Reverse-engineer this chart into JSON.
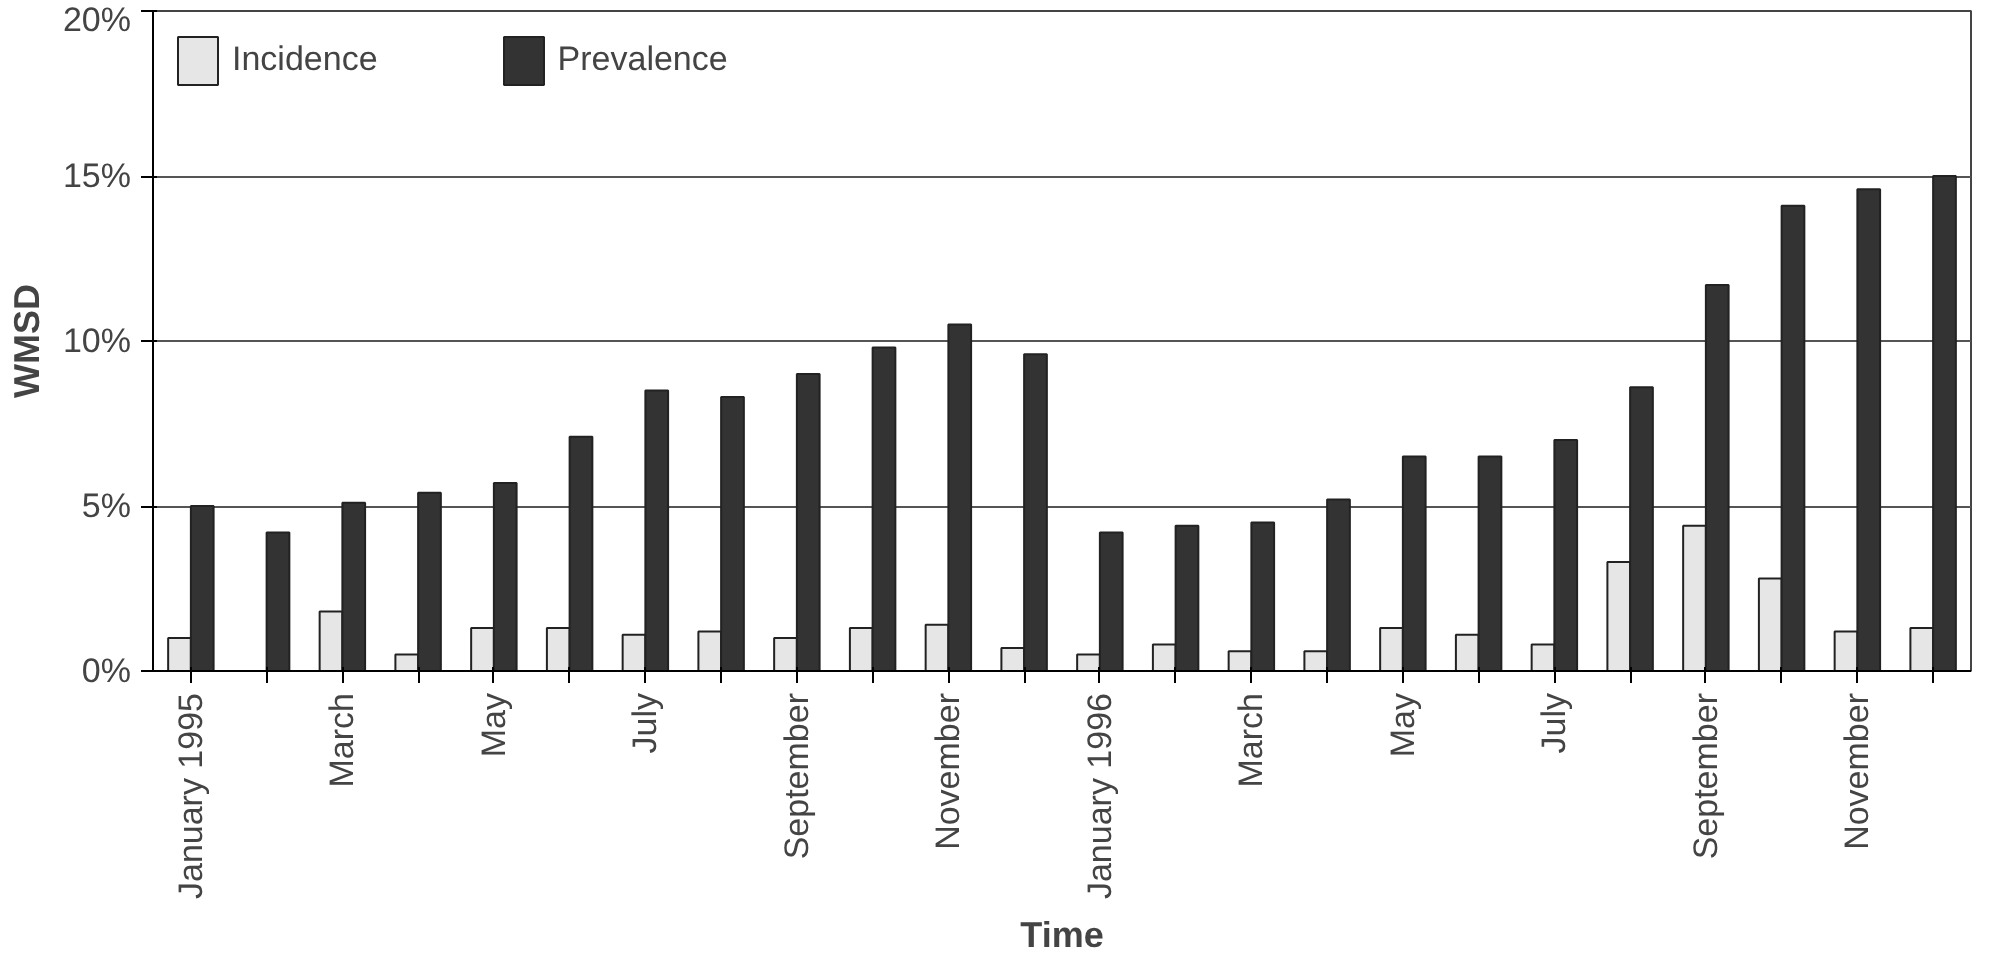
{
  "chart_data": {
    "type": "bar",
    "xlabel": "Time",
    "ylabel": "WMSD",
    "categories": [
      "January 1995",
      null,
      "March",
      null,
      "May",
      null,
      "July",
      null,
      "September",
      null,
      "November",
      null,
      "January 1996",
      null,
      "March",
      null,
      "May",
      null,
      "July",
      null,
      "September",
      null,
      "November",
      null
    ],
    "series": [
      {
        "name": "Incidence",
        "color": "#e6e6e6",
        "values": [
          1.0,
          null,
          1.8,
          0.5,
          1.3,
          1.3,
          1.1,
          1.2,
          1.0,
          1.3,
          1.4,
          0.7,
          0.5,
          0.8,
          0.6,
          0.6,
          1.3,
          1.1,
          0.8,
          3.3,
          4.4,
          2.8,
          1.2,
          1.3
        ]
      },
      {
        "name": "Prevalence",
        "color": "#333333",
        "values": [
          5.0,
          4.2,
          5.1,
          5.4,
          5.7,
          7.1,
          8.5,
          8.3,
          9.0,
          9.8,
          10.5,
          9.6,
          4.2,
          4.4,
          4.5,
          5.2,
          6.5,
          6.5,
          7.0,
          8.6,
          11.7,
          14.1,
          14.6,
          15.0
        ]
      }
    ],
    "ylim": [
      0,
      20
    ],
    "yticks": [
      {
        "value": 0,
        "label": "0%"
      },
      {
        "value": 5,
        "label": "5%"
      },
      {
        "value": 10,
        "label": "10%"
      },
      {
        "value": 15,
        "label": "15%"
      },
      {
        "value": 20,
        "label": "20%"
      }
    ],
    "grid": "y",
    "legend": "top left"
  }
}
